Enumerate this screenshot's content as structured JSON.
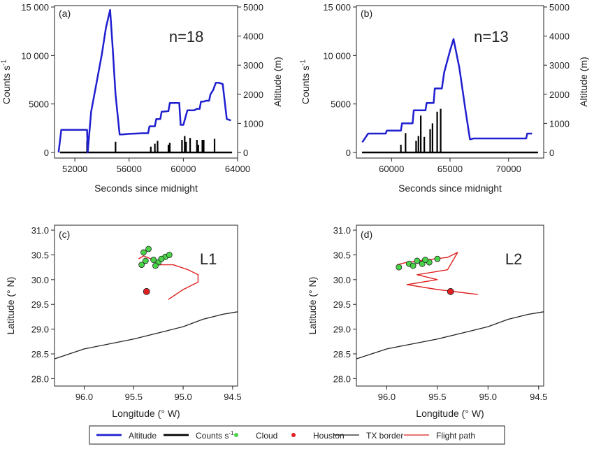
{
  "chart_data": [
    {
      "type": "line",
      "panel_label": "(a)",
      "annotation": "n=18",
      "xlabel": "Seconds since midnight",
      "ylabel_left": "Counts s",
      "ylabel_left_sup": "-1",
      "ylabel_right": "Altitude (m)",
      "xlim": [
        50500,
        64000
      ],
      "ylim_left": [
        0,
        15000
      ],
      "ylim_right": [
        0,
        5000
      ],
      "x_ticks": [
        52000,
        56000,
        60000,
        64000
      ],
      "x_tick_labels": [
        "52000",
        "56000",
        "60000",
        "64000"
      ],
      "y_left_ticks": [
        0,
        5000,
        10000,
        15000
      ],
      "y_left_tick_labels": [
        "0",
        "5000",
        "10 000",
        "15 000"
      ],
      "y_right_ticks": [
        0,
        1000,
        2000,
        3000,
        4000,
        5000
      ],
      "y_right_tick_labels": [
        "0",
        "1000",
        "2000",
        "3000",
        "4000",
        "5000"
      ],
      "series": [
        {
          "name": "Altitude",
          "axis": "right",
          "x": [
            50800,
            51000,
            52900,
            52950,
            53200,
            53600,
            54000,
            54300,
            54600,
            54800,
            55000,
            55300,
            55500,
            56000,
            56500,
            57000,
            57400,
            57500,
            57900,
            58000,
            58300,
            58400,
            58900,
            59000,
            59300,
            59500,
            59700,
            59800,
            60000,
            60300,
            60800,
            61000,
            61200,
            61300,
            61500,
            61700,
            61900,
            62000,
            62200,
            62400,
            62600,
            62900,
            63200,
            63500
          ],
          "y": [
            0,
            780,
            780,
            0,
            1400,
            2400,
            3400,
            4300,
            4900,
            3500,
            2000,
            620,
            620,
            640,
            650,
            660,
            660,
            900,
            900,
            1150,
            1150,
            1400,
            1420,
            1700,
            1700,
            1700,
            1700,
            950,
            950,
            1450,
            1450,
            1500,
            1500,
            1750,
            1750,
            1780,
            1780,
            2000,
            2150,
            2400,
            2400,
            2350,
            1150,
            1100
          ]
        },
        {
          "name": "Counts s-1",
          "axis": "left",
          "bars_x": [
            52900,
            55000,
            57600,
            57900,
            58100,
            58900,
            59000,
            59900,
            60100,
            60200,
            60500,
            61000,
            61100,
            61400,
            61500,
            62300
          ],
          "bars_y": [
            1200,
            1100,
            600,
            900,
            1200,
            800,
            1000,
            1300,
            1700,
            1100,
            1500,
            1300,
            800,
            1300,
            1300,
            1400
          ]
        }
      ]
    },
    {
      "type": "line",
      "panel_label": "(b)",
      "annotation": "n=13",
      "xlabel": "Seconds since midnight",
      "ylabel_left": "Counts s",
      "ylabel_left_sup": "-1",
      "ylabel_right": "Altitude (m)",
      "xlim": [
        57000,
        73000
      ],
      "ylim_left": [
        0,
        15000
      ],
      "ylim_right": [
        0,
        5000
      ],
      "x_ticks": [
        60000,
        65000,
        70000
      ],
      "x_tick_labels": [
        "60000",
        "65000",
        "70000"
      ],
      "y_left_ticks": [
        0,
        5000,
        10000,
        15000
      ],
      "y_left_tick_labels": [
        "0",
        "5000",
        "10 000",
        "15 000"
      ],
      "y_right_ticks": [
        0,
        1000,
        2000,
        3000,
        4000,
        5000
      ],
      "y_right_tick_labels": [
        "0",
        "1000",
        "2000",
        "3000",
        "4000",
        "5000"
      ],
      "series": [
        {
          "name": "Altitude",
          "axis": "right",
          "x": [
            57500,
            58000,
            59500,
            59600,
            60800,
            60900,
            61800,
            61900,
            62900,
            63000,
            63600,
            63700,
            64300,
            64500,
            65000,
            65300,
            65800,
            66300,
            66700,
            67000,
            70000,
            71500,
            71600,
            72000
          ],
          "y": [
            350,
            650,
            650,
            750,
            750,
            1000,
            1000,
            1450,
            1450,
            1700,
            1700,
            2200,
            2200,
            2750,
            3500,
            3900,
            2900,
            1500,
            450,
            480,
            480,
            480,
            650,
            650
          ]
        },
        {
          "name": "Counts s-1",
          "axis": "left",
          "bars_x": [
            60800,
            61200,
            62100,
            62300,
            62500,
            62800,
            63300,
            63500,
            63900,
            64200
          ],
          "bars_y": [
            800,
            2000,
            1200,
            1700,
            3800,
            1600,
            2400,
            3000,
            4200,
            4500
          ]
        }
      ]
    },
    {
      "type": "map",
      "panel_label": "(c)",
      "annotation": "L1",
      "xlabel": "Longitude (° W)",
      "ylabel": "Latitude (° N)",
      "xlim": [
        96.3,
        94.45
      ],
      "ylim": [
        27.85,
        31.1
      ],
      "x_ticks": [
        96.0,
        95.5,
        95.0,
        94.5
      ],
      "x_tick_labels": [
        "96.0",
        "95.5",
        "95.0",
        "94.5"
      ],
      "y_ticks": [
        28.0,
        28.5,
        29.0,
        29.5,
        30.0,
        30.5,
        31.0
      ],
      "y_tick_labels": [
        "28.0",
        "28.5",
        "29.0",
        "29.5",
        "30.0",
        "30.5",
        "31.0"
      ],
      "houston": [
        95.37,
        29.76
      ],
      "tx_border": [
        [
          96.3,
          28.4
        ],
        [
          96.0,
          28.6
        ],
        [
          95.5,
          28.8
        ],
        [
          95.2,
          28.95
        ],
        [
          95.0,
          29.05
        ],
        [
          94.8,
          29.2
        ],
        [
          94.6,
          29.3
        ],
        [
          94.45,
          29.35
        ]
      ],
      "flight_path": [
        [
          95.45,
          30.42
        ],
        [
          95.4,
          30.48
        ],
        [
          95.3,
          30.4
        ],
        [
          95.25,
          30.3
        ],
        [
          95.1,
          30.3
        ],
        [
          94.95,
          30.2
        ],
        [
          94.85,
          30.1
        ],
        [
          94.85,
          29.95
        ],
        [
          95.0,
          29.8
        ],
        [
          95.15,
          29.6
        ]
      ],
      "cloud_points": [
        [
          95.4,
          30.55
        ],
        [
          95.35,
          30.62
        ],
        [
          95.38,
          30.38
        ],
        [
          95.3,
          30.4
        ],
        [
          95.25,
          30.35
        ],
        [
          95.18,
          30.46
        ],
        [
          95.42,
          30.3
        ],
        [
          95.28,
          30.28
        ],
        [
          95.22,
          30.42
        ],
        [
          95.14,
          30.5
        ]
      ]
    },
    {
      "type": "map",
      "panel_label": "(d)",
      "annotation": "L2",
      "xlabel": "Longitude (° W)",
      "ylabel": "Latitude (° N)",
      "xlim": [
        96.3,
        94.45
      ],
      "ylim": [
        27.85,
        31.1
      ],
      "x_ticks": [
        96.0,
        95.5,
        95.0,
        94.5
      ],
      "x_tick_labels": [
        "96.0",
        "95.5",
        "95.0",
        "94.5"
      ],
      "y_ticks": [
        28.0,
        28.5,
        29.0,
        29.5,
        30.0,
        30.5,
        31.0
      ],
      "y_tick_labels": [
        "28.0",
        "28.5",
        "29.0",
        "29.5",
        "30.0",
        "30.5",
        "31.0"
      ],
      "houston": [
        95.37,
        29.76
      ],
      "tx_border": [
        [
          96.3,
          28.4
        ],
        [
          96.0,
          28.6
        ],
        [
          95.5,
          28.8
        ],
        [
          95.2,
          28.95
        ],
        [
          95.0,
          29.05
        ],
        [
          94.8,
          29.2
        ],
        [
          94.6,
          29.3
        ],
        [
          94.45,
          29.35
        ]
      ],
      "flight_path": [
        [
          95.9,
          30.3
        ],
        [
          95.8,
          30.35
        ],
        [
          95.6,
          30.4
        ],
        [
          95.4,
          30.45
        ],
        [
          95.3,
          30.55
        ],
        [
          95.4,
          30.2
        ],
        [
          95.7,
          30.1
        ],
        [
          95.5,
          30.0
        ],
        [
          95.8,
          29.9
        ],
        [
          95.5,
          29.8
        ],
        [
          95.3,
          29.75
        ],
        [
          95.1,
          29.7
        ]
      ],
      "cloud_points": [
        [
          95.88,
          30.25
        ],
        [
          95.78,
          30.32
        ],
        [
          95.7,
          30.38
        ],
        [
          95.65,
          30.32
        ],
        [
          95.58,
          30.35
        ],
        [
          95.5,
          30.42
        ],
        [
          95.74,
          30.28
        ],
        [
          95.62,
          30.4
        ]
      ]
    }
  ],
  "legend": {
    "items": [
      {
        "label": "Altitude",
        "kind": "line",
        "color": "#1f1fd0"
      },
      {
        "label": "Counts s",
        "sup": "-1",
        "kind": "line",
        "color": "#000000"
      },
      {
        "label": "Cloud",
        "kind": "dot",
        "color": "#4ad44a"
      },
      {
        "label": "Houston",
        "kind": "dot",
        "color": "#e02020"
      },
      {
        "label": "TX border",
        "kind": "thin",
        "color": "#222222"
      },
      {
        "label": "Flight path",
        "kind": "thin",
        "color": "#e02020"
      }
    ]
  },
  "colors": {
    "altitude": "#1f1fd0",
    "counts": "#000000",
    "cloud": "#4ad44a",
    "houston": "#e02020",
    "border": "#222222",
    "flight": "#e02020"
  }
}
